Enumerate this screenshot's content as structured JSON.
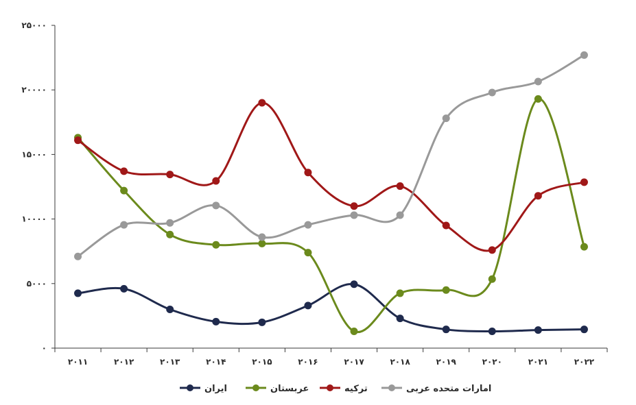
{
  "chart_data": {
    "type": "line",
    "title": "",
    "xlabel": "",
    "ylabel": "",
    "ylim": [
      0,
      25000
    ],
    "grid": false,
    "legend_position": "bottom",
    "smooth": true,
    "x": [
      "۲۰۱۱",
      "۲۰۱۲",
      "۲۰۱۳",
      "۲۰۱۴",
      "۲۰۱۵",
      "۲۰۱۶",
      "۲۰۱۷",
      "۲۰۱۸",
      "۲۰۱۹",
      "۲۰۲۰",
      "۲۰۲۱",
      "۲۰۲۲"
    ],
    "y_ticks": [
      0,
      5000,
      10000,
      15000,
      20000,
      25000
    ],
    "y_tick_labels": [
      "۰",
      "۵۰۰۰",
      "۱۰۰۰۰",
      "۱۵۰۰۰",
      "۲۰۰۰۰",
      "۲۵۰۰۰"
    ],
    "series": [
      {
        "name": "ایران",
        "color": "#1f2a4d",
        "values": [
          4250,
          4600,
          3000,
          2050,
          2000,
          3300,
          4950,
          2300,
          1450,
          1300,
          1400,
          1450
        ]
      },
      {
        "name": "عربستان",
        "color": "#6b8a1c",
        "values": [
          16300,
          12200,
          8800,
          8000,
          8100,
          7400,
          1300,
          4250,
          4500,
          5350,
          19300,
          7850
        ]
      },
      {
        "name": "ترکیه",
        "color": "#a01818",
        "values": [
          16100,
          13700,
          13450,
          12950,
          19000,
          13600,
          11000,
          12550,
          9500,
          7600,
          11800,
          12850
        ]
      },
      {
        "name": "امارات متحده عربی",
        "color": "#999999",
        "values": [
          7100,
          9550,
          9700,
          11050,
          8600,
          9550,
          10300,
          10300,
          17800,
          19800,
          20650,
          22700
        ]
      }
    ]
  }
}
